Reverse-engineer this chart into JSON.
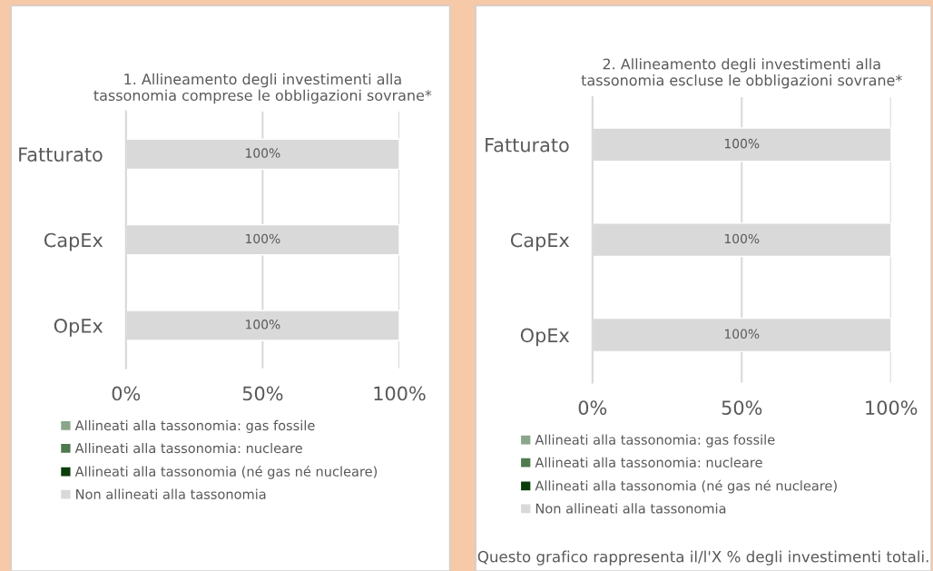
{
  "chart_data": [
    {
      "type": "bar",
      "orientation": "horizontal",
      "stacked": true,
      "title": "1. Allineamento degli investimenti alla tassonomia comprese le obbligazioni sovrane*",
      "categories": [
        "Fatturato",
        "CapEx",
        "OpEx"
      ],
      "xlim": [
        0,
        100
      ],
      "xticks": [
        {
          "value": 0,
          "label": "0%"
        },
        {
          "value": 50,
          "label": "50%"
        },
        {
          "value": 100,
          "label": "100%"
        }
      ],
      "grid": "x",
      "legend": "bottom",
      "series": [
        {
          "name": "Allineati alla tassonomia: gas fossile",
          "color": "#8aa58a",
          "values": [
            0,
            0,
            0
          ]
        },
        {
          "name": "Allineati alla tassonomia: nucleare",
          "color": "#4e7a4e",
          "values": [
            0,
            0,
            0
          ]
        },
        {
          "name": "Allineati alla tassonomia (né gas né nucleare)",
          "color": "#0b3d0b",
          "values": [
            0,
            0,
            0
          ]
        },
        {
          "name": "Non allineati alla tassonomia",
          "color": "#d9d9d9",
          "values": [
            100,
            100,
            100
          ],
          "value_labels": [
            "100%",
            "100%",
            "100%"
          ]
        }
      ]
    },
    {
      "type": "bar",
      "orientation": "horizontal",
      "stacked": true,
      "title": "2. Allineamento degli investimenti alla tassonomia escluse le obbligazioni sovrane*",
      "categories": [
        "Fatturato",
        "CapEx",
        "OpEx"
      ],
      "xlim": [
        0,
        100
      ],
      "xticks": [
        {
          "value": 0,
          "label": "0%"
        },
        {
          "value": 50,
          "label": "50%"
        },
        {
          "value": 100,
          "label": "100%"
        }
      ],
      "grid": "x",
      "legend": "bottom",
      "annotations": [
        "Questo grafico rappresenta il/l'X % degli investimenti totali."
      ],
      "series": [
        {
          "name": "Allineati alla tassonomia: gas fossile",
          "color": "#8aa58a",
          "values": [
            0,
            0,
            0
          ]
        },
        {
          "name": "Allineati alla tassonomia: nucleare",
          "color": "#4e7a4e",
          "values": [
            0,
            0,
            0
          ]
        },
        {
          "name": "Allineati alla tassonomia (né gas né nucleare)",
          "color": "#0b3d0b",
          "values": [
            0,
            0,
            0
          ]
        },
        {
          "name": "Non allineati alla tassonomia",
          "color": "#d9d9d9",
          "values": [
            100,
            100,
            100
          ],
          "value_labels": [
            "100%",
            "100%",
            "100%"
          ]
        }
      ]
    }
  ]
}
